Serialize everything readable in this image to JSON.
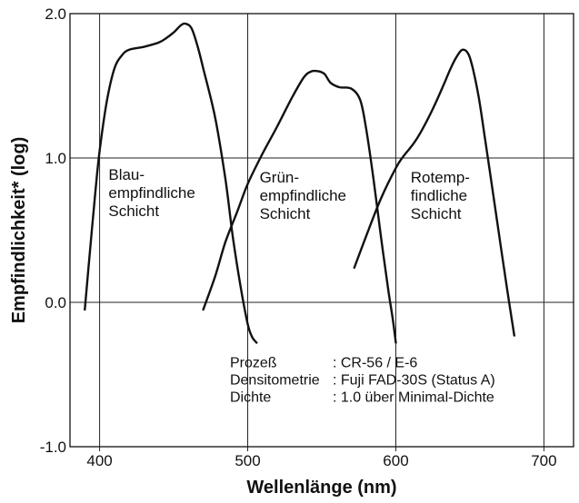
{
  "chart_data": {
    "type": "line",
    "xlabel": "Wellenlänge (nm)",
    "ylabel": "Empfindlichkeit* (log)",
    "xlim": [
      380,
      720
    ],
    "ylim": [
      -1.0,
      2.0
    ],
    "x_ticks": [
      "400",
      "500",
      "600",
      "700"
    ],
    "x_tick_values": [
      400,
      500,
      600,
      700
    ],
    "y_ticks": [
      "2.0",
      "1.0",
      "0.0",
      "-1.0"
    ],
    "y_tick_values": [
      2.0,
      1.0,
      0.0,
      -1.0
    ],
    "grid": true,
    "series": [
      {
        "name": "Blau-empfindliche Schicht",
        "label_lines": [
          "Blau-",
          "empfindliche",
          "Schicht"
        ],
        "label_anchor": [
          406,
          0.85
        ],
        "x": [
          390,
          393,
          397,
          400,
          405,
          410,
          415,
          420,
          430,
          440,
          445,
          450,
          455,
          458,
          462,
          466,
          470,
          478,
          485,
          490,
          495,
          500,
          503,
          506
        ],
        "y": [
          -0.05,
          0.3,
          0.75,
          1.05,
          1.4,
          1.62,
          1.71,
          1.75,
          1.77,
          1.8,
          1.83,
          1.87,
          1.92,
          1.93,
          1.9,
          1.78,
          1.62,
          1.28,
          0.85,
          0.45,
          0.12,
          -0.15,
          -0.24,
          -0.28
        ],
        "color": "#111111"
      },
      {
        "name": "Grün-empfindliche Schicht",
        "label_lines": [
          "Grün-",
          "empfindliche",
          "Schicht"
        ],
        "label_anchor": [
          508,
          0.83
        ],
        "x": [
          470,
          478,
          485,
          493,
          500,
          510,
          520,
          530,
          538,
          543,
          548,
          552,
          556,
          562,
          570,
          576,
          580,
          585,
          590,
          595,
          598,
          600
        ],
        "y": [
          -0.05,
          0.18,
          0.42,
          0.63,
          0.82,
          1.03,
          1.22,
          1.42,
          1.56,
          1.6,
          1.6,
          1.58,
          1.52,
          1.49,
          1.48,
          1.4,
          1.2,
          0.85,
          0.45,
          0.08,
          -0.12,
          -0.28
        ],
        "color": "#111111"
      },
      {
        "name": "Rotemp-findliche Schicht",
        "label_lines": [
          "Rotemp-",
          "findliche",
          "Schicht"
        ],
        "label_anchor": [
          610,
          0.83
        ],
        "x": [
          572,
          580,
          590,
          600,
          605,
          612,
          618,
          625,
          632,
          637,
          641,
          645,
          649,
          652,
          656,
          660,
          665,
          670,
          675,
          680
        ],
        "y": [
          0.24,
          0.46,
          0.72,
          0.93,
          1.01,
          1.1,
          1.2,
          1.34,
          1.5,
          1.62,
          1.7,
          1.75,
          1.72,
          1.62,
          1.42,
          1.15,
          0.8,
          0.45,
          0.1,
          -0.23
        ]
      }
    ],
    "annotation": {
      "anchor": [
        488,
        -0.45
      ],
      "rows": [
        {
          "key": "Prozeß",
          "value": ": CR-56 / E-6"
        },
        {
          "key": "Densitometrie",
          "value": ": Fuji FAD-30S (Status A)"
        },
        {
          "key": "Dichte",
          "value": ": 1.0 über Minimal-Dichte"
        }
      ]
    }
  }
}
